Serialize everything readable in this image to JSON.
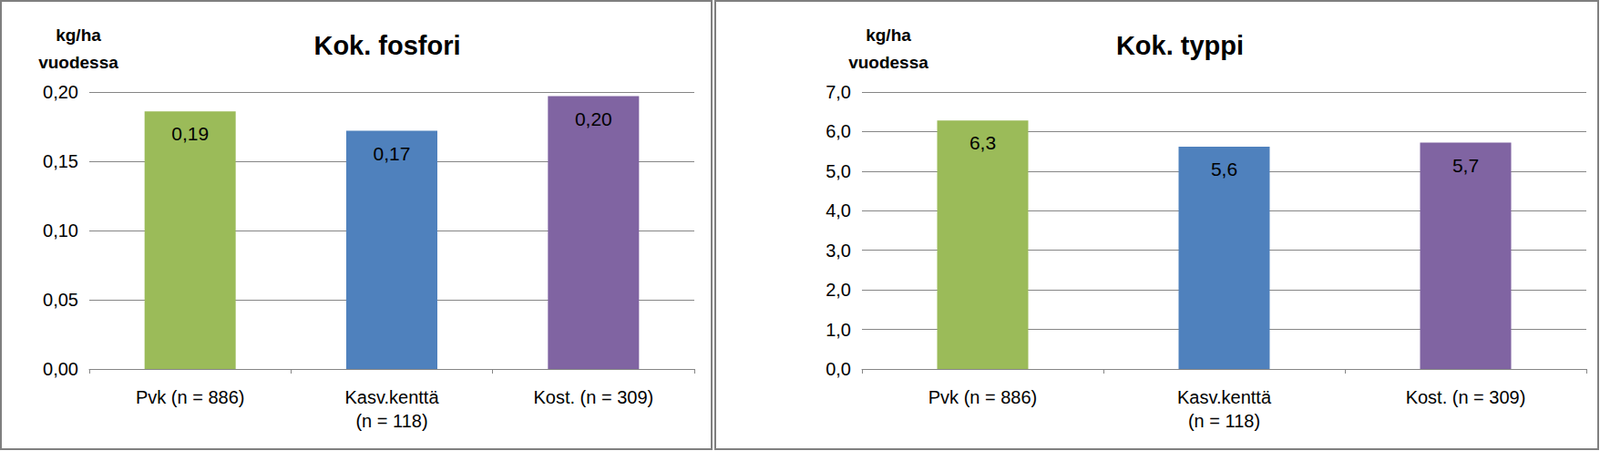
{
  "chart_data": [
    {
      "type": "bar",
      "title": "Kok. fosfori",
      "ylabel": "kg/ha\nvuodessa",
      "categories": [
        "Pvk (n = 886)",
        "Kasv.kenttä\n(n = 118)",
        "Kost. (n = 309)"
      ],
      "values": [
        0.186,
        0.172,
        0.197
      ],
      "value_labels": [
        "0,19",
        "0,17",
        "0,20"
      ],
      "colors": [
        "#9bbb59",
        "#4f81bd",
        "#8064a2"
      ],
      "ylim": [
        0,
        0.2
      ],
      "yticks": [
        {
          "value": 0,
          "label": "0,00"
        },
        {
          "value": 0.05,
          "label": "0,05"
        },
        {
          "value": 0.1,
          "label": "0,10"
        },
        {
          "value": 0.15,
          "label": "0,15"
        },
        {
          "value": 0.2,
          "label": "0,20"
        }
      ],
      "grid": true,
      "data_labels": true
    },
    {
      "type": "bar",
      "title": "Kok. typpi",
      "ylabel": "kg/ha\nvuodessa",
      "categories": [
        "Pvk (n = 886)",
        "Kasv.kenttä\n(n = 118)",
        "Kost. (n = 309)"
      ],
      "values": [
        6.28,
        5.62,
        5.72
      ],
      "value_labels": [
        "6,3",
        "5,6",
        "5,7"
      ],
      "colors": [
        "#9bbb59",
        "#4f81bd",
        "#8064a2"
      ],
      "ylim": [
        0,
        7
      ],
      "yticks": [
        {
          "value": 0,
          "label": "0,0"
        },
        {
          "value": 1,
          "label": "1,0"
        },
        {
          "value": 2,
          "label": "2,0"
        },
        {
          "value": 3,
          "label": "3,0"
        },
        {
          "value": 4,
          "label": "4,0"
        },
        {
          "value": 5,
          "label": "5,0"
        },
        {
          "value": 6,
          "label": "6,0"
        },
        {
          "value": 7,
          "label": "7,0"
        }
      ],
      "grid": true,
      "data_labels": true
    }
  ]
}
